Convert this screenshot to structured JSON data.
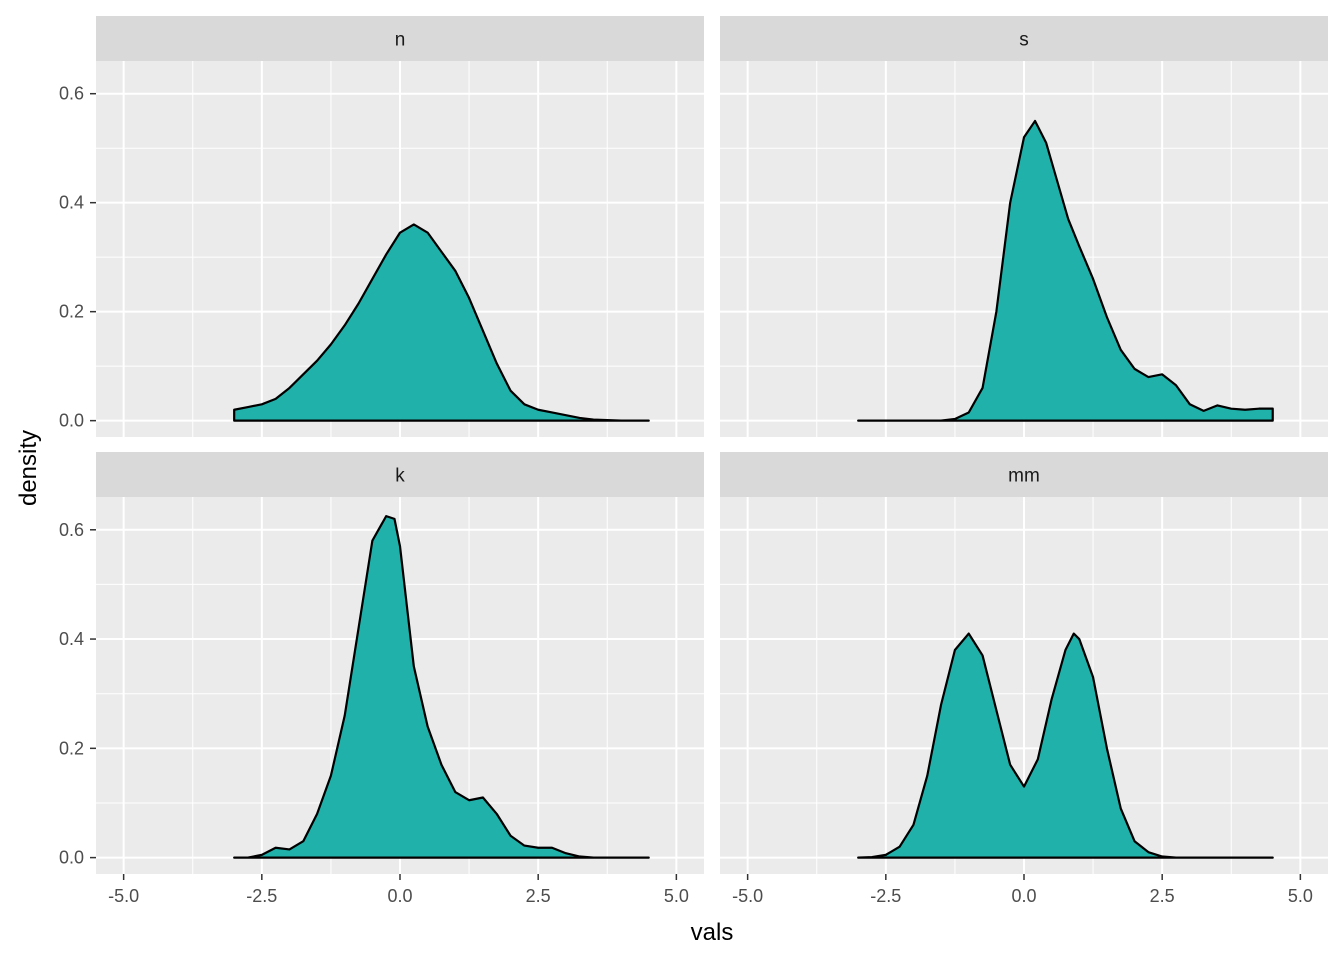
{
  "chart_data": {
    "type": "area",
    "xlabel": "vals",
    "ylabel": "density",
    "xlim": [
      -5.5,
      5.5
    ],
    "ylim": [
      -0.03,
      0.66
    ],
    "x_ticks": [
      -5.0,
      -2.5,
      0.0,
      2.5,
      5.0
    ],
    "x_tick_labels": [
      "-5.0",
      "-2.5",
      "0.0",
      "2.5",
      "5.0"
    ],
    "y_ticks": [
      0.0,
      0.2,
      0.4,
      0.6
    ],
    "y_tick_labels": [
      "0.0",
      "0.2",
      "0.4",
      "0.6"
    ],
    "grid": true,
    "fill_color": "#20b2aa",
    "panel_background": "#ebebeb",
    "strip_background": "#d9d9d9",
    "panels": [
      {
        "label": "n",
        "x": [
          -3.0,
          -2.75,
          -2.5,
          -2.25,
          -2.0,
          -1.75,
          -1.5,
          -1.25,
          -1.0,
          -0.75,
          -0.5,
          -0.25,
          0.0,
          0.25,
          0.5,
          0.75,
          1.0,
          1.25,
          1.5,
          1.75,
          2.0,
          2.25,
          2.5,
          2.75,
          3.0,
          3.25,
          3.5,
          3.75,
          4.0,
          4.5
        ],
        "y": [
          0.02,
          0.025,
          0.03,
          0.04,
          0.06,
          0.085,
          0.11,
          0.14,
          0.175,
          0.215,
          0.26,
          0.305,
          0.345,
          0.36,
          0.345,
          0.31,
          0.275,
          0.225,
          0.165,
          0.105,
          0.055,
          0.03,
          0.02,
          0.015,
          0.01,
          0.005,
          0.002,
          0.001,
          0.0,
          0.0
        ]
      },
      {
        "label": "s",
        "x": [
          -3.0,
          -2.0,
          -1.5,
          -1.25,
          -1.0,
          -0.75,
          -0.5,
          -0.25,
          0.0,
          0.2,
          0.4,
          0.6,
          0.8,
          1.0,
          1.25,
          1.5,
          1.75,
          2.0,
          2.25,
          2.5,
          2.75,
          3.0,
          3.25,
          3.5,
          3.75,
          4.0,
          4.25,
          4.5
        ],
        "y": [
          0.0,
          0.0,
          0.0,
          0.003,
          0.015,
          0.06,
          0.2,
          0.4,
          0.52,
          0.55,
          0.51,
          0.44,
          0.37,
          0.32,
          0.26,
          0.19,
          0.13,
          0.095,
          0.08,
          0.085,
          0.065,
          0.03,
          0.018,
          0.028,
          0.022,
          0.02,
          0.022,
          0.022
        ]
      },
      {
        "label": "k",
        "x": [
          -3.0,
          -2.75,
          -2.5,
          -2.25,
          -2.0,
          -1.75,
          -1.5,
          -1.25,
          -1.0,
          -0.75,
          -0.5,
          -0.25,
          -0.1,
          0.0,
          0.25,
          0.5,
          0.75,
          1.0,
          1.25,
          1.5,
          1.75,
          2.0,
          2.25,
          2.5,
          2.75,
          3.0,
          3.25,
          3.5,
          4.0,
          4.5
        ],
        "y": [
          0.0,
          0.0,
          0.005,
          0.018,
          0.015,
          0.03,
          0.08,
          0.15,
          0.26,
          0.42,
          0.58,
          0.625,
          0.62,
          0.57,
          0.35,
          0.24,
          0.17,
          0.12,
          0.105,
          0.11,
          0.08,
          0.04,
          0.022,
          0.018,
          0.018,
          0.008,
          0.002,
          0.0,
          0.0,
          0.0
        ]
      },
      {
        "label": "mm",
        "x": [
          -3.0,
          -2.75,
          -2.5,
          -2.25,
          -2.0,
          -1.75,
          -1.5,
          -1.25,
          -1.0,
          -0.75,
          -0.5,
          -0.25,
          0.0,
          0.25,
          0.5,
          0.75,
          0.9,
          1.0,
          1.25,
          1.5,
          1.75,
          2.0,
          2.25,
          2.5,
          2.75,
          3.0,
          4.5
        ],
        "y": [
          0.0,
          0.001,
          0.005,
          0.02,
          0.06,
          0.15,
          0.28,
          0.38,
          0.41,
          0.37,
          0.27,
          0.17,
          0.13,
          0.18,
          0.29,
          0.38,
          0.41,
          0.4,
          0.33,
          0.2,
          0.09,
          0.03,
          0.01,
          0.002,
          0.0,
          0.0,
          0.0
        ]
      }
    ]
  }
}
